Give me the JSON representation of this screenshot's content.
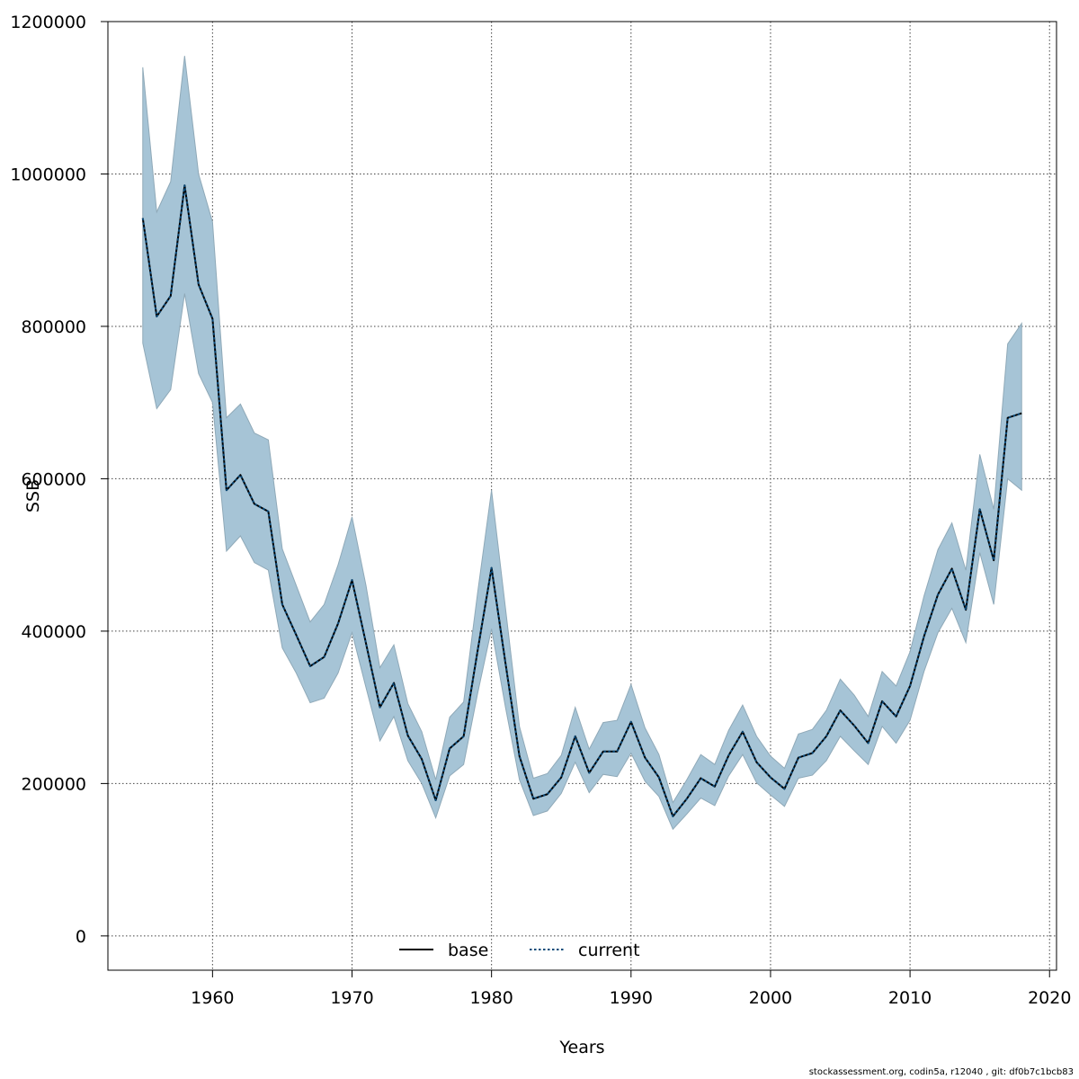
{
  "chart_data": {
    "type": "line",
    "xlabel": "Years",
    "ylabel": "SSB",
    "xlim": [
      1952.5,
      2020.5
    ],
    "ylim": [
      -45000,
      1200000
    ],
    "xticks": [
      1960,
      1970,
      1980,
      1990,
      2000,
      2010,
      2020
    ],
    "yticks": [
      0,
      200000,
      400000,
      600000,
      800000,
      1000000,
      1200000
    ],
    "grid": true,
    "legend_position": "bottom-center",
    "band_color": "#a6c4d6",
    "band_edge_color": "#8fa9b8",
    "x": [
      1955,
      1956,
      1957,
      1958,
      1959,
      1960,
      1961,
      1962,
      1963,
      1964,
      1965,
      1966,
      1967,
      1968,
      1969,
      1970,
      1971,
      1972,
      1973,
      1974,
      1975,
      1976,
      1977,
      1978,
      1979,
      1980,
      1981,
      1982,
      1983,
      1984,
      1985,
      1986,
      1987,
      1988,
      1989,
      1990,
      1991,
      1992,
      1993,
      1994,
      1995,
      1996,
      1997,
      1998,
      1999,
      2000,
      2001,
      2002,
      2003,
      2004,
      2005,
      2006,
      2007,
      2008,
      2009,
      2010,
      2011,
      2012,
      2013,
      2014,
      2015,
      2016,
      2017,
      2018
    ],
    "band_upper": [
      1140000,
      950000,
      990000,
      1155000,
      1000000,
      937000,
      680000,
      698000,
      660000,
      651000,
      508000,
      460000,
      412000,
      435000,
      487000,
      550000,
      460000,
      352000,
      382000,
      305000,
      268000,
      205000,
      287000,
      307000,
      450000,
      585000,
      430000,
      275000,
      207000,
      213000,
      237000,
      300000,
      245000,
      280000,
      283000,
      330000,
      273000,
      238000,
      175000,
      205000,
      238000,
      225000,
      270000,
      303000,
      262000,
      236000,
      220000,
      265000,
      271000,
      296000,
      337000,
      316000,
      288000,
      347000,
      328000,
      373000,
      446000,
      507000,
      542000,
      480000,
      632000,
      560000,
      777000,
      804000
    ],
    "band_lower": [
      778000,
      692000,
      717000,
      843000,
      738000,
      700000,
      505000,
      525000,
      490000,
      480000,
      378000,
      345000,
      306000,
      312000,
      345000,
      398000,
      326000,
      256000,
      288000,
      230000,
      200000,
      155000,
      210000,
      225000,
      318000,
      403000,
      300000,
      205000,
      158000,
      164000,
      187000,
      228000,
      188000,
      212000,
      209000,
      240000,
      203000,
      183000,
      140000,
      160000,
      181000,
      171000,
      210000,
      238000,
      201000,
      185000,
      170000,
      207000,
      211000,
      230000,
      262000,
      243000,
      225000,
      275000,
      253000,
      283000,
      347000,
      398000,
      430000,
      385000,
      503000,
      435000,
      600000,
      585000
    ],
    "series": [
      {
        "name": "base",
        "style": "solid",
        "color": "#000000",
        "values": [
          942000,
          813000,
          840000,
          985000,
          855000,
          810000,
          585000,
          605000,
          567000,
          557000,
          435000,
          395000,
          354000,
          366000,
          410000,
          467000,
          384000,
          300000,
          332000,
          263000,
          232000,
          178000,
          246000,
          262000,
          374000,
          483000,
          358000,
          236000,
          180000,
          186000,
          208000,
          262000,
          214000,
          242000,
          242000,
          281000,
          234000,
          208000,
          157000,
          180000,
          207000,
          196000,
          237000,
          268000,
          228000,
          208000,
          193000,
          234000,
          240000,
          262000,
          296000,
          276000,
          253000,
          308000,
          288000,
          328000,
          393000,
          448000,
          482000,
          428000,
          560000,
          493000,
          680000,
          686000
        ]
      },
      {
        "name": "current",
        "style": "dotted",
        "color": "#0b4b7a",
        "values": [
          942000,
          813000,
          840000,
          985000,
          855000,
          810000,
          585000,
          605000,
          567000,
          557000,
          435000,
          395000,
          354000,
          366000,
          410000,
          467000,
          384000,
          300000,
          332000,
          263000,
          232000,
          178000,
          246000,
          262000,
          374000,
          483000,
          358000,
          236000,
          180000,
          186000,
          208000,
          262000,
          214000,
          242000,
          242000,
          281000,
          234000,
          208000,
          157000,
          180000,
          207000,
          196000,
          237000,
          268000,
          228000,
          208000,
          193000,
          234000,
          240000,
          262000,
          296000,
          276000,
          253000,
          308000,
          288000,
          328000,
          393000,
          448000,
          482000,
          428000,
          560000,
          493000,
          680000,
          686000
        ]
      }
    ]
  },
  "footer_text": "stockassessment.org, codin5a, r12040 , git: df0b7c1bcb83"
}
